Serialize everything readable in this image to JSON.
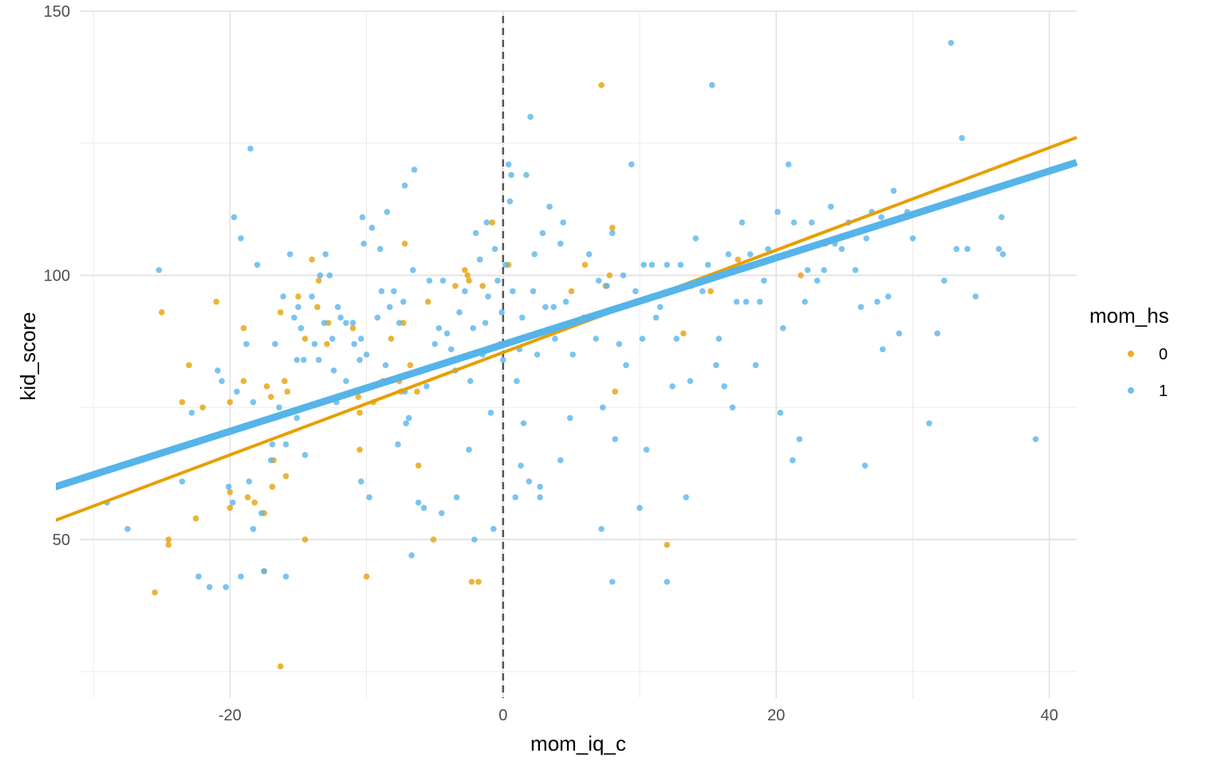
{
  "chart_data": {
    "type": "scatter",
    "xlabel": "mom_iq_c",
    "ylabel": "kid_score",
    "xlim": [
      -31,
      42
    ],
    "ylim": [
      20,
      150
    ],
    "x_ticks": [
      -20,
      0,
      20,
      40
    ],
    "x_tick_labels": [
      "-20",
      "0",
      "20",
      "40"
    ],
    "y_ticks": [
      50,
      100,
      150
    ],
    "y_tick_labels": [
      "50",
      "100",
      "150"
    ],
    "grid": true,
    "legend": {
      "title": "mom_hs",
      "position": "right",
      "entries": [
        {
          "label": "0",
          "color": "#E69F00"
        },
        {
          "label": "1",
          "color": "#56B4E9"
        }
      ]
    },
    "reference_line": {
      "x": 0,
      "style": "dashed",
      "color": "#555555"
    },
    "series": [
      {
        "name": "0",
        "color": "#E69F00",
        "points": [
          [
            -25,
            93
          ],
          [
            -23,
            83
          ],
          [
            -22,
            75
          ],
          [
            -21,
            95
          ],
          [
            -23.5,
            76
          ],
          [
            -25.5,
            40
          ],
          [
            -24.5,
            50
          ],
          [
            -24.5,
            49
          ],
          [
            -22.5,
            54
          ],
          [
            -20,
            76
          ],
          [
            -20,
            56
          ],
          [
            -19.5,
            71
          ],
          [
            -20,
            59
          ],
          [
            -19,
            80
          ],
          [
            -18.7,
            58
          ],
          [
            -18.2,
            57
          ],
          [
            -17.5,
            55
          ],
          [
            -17.5,
            44
          ],
          [
            -17.3,
            79
          ],
          [
            -16.8,
            65
          ],
          [
            -16.9,
            60
          ],
          [
            -16.3,
            93
          ],
          [
            -16.3,
            26
          ],
          [
            -16,
            80
          ],
          [
            -15.8,
            78
          ],
          [
            -15.9,
            62
          ],
          [
            -15,
            96
          ],
          [
            -14.5,
            88
          ],
          [
            -14,
            103
          ],
          [
            -13.6,
            94
          ],
          [
            -13.5,
            99
          ],
          [
            -12.9,
            87
          ],
          [
            -12.8,
            91
          ],
          [
            -11,
            90
          ],
          [
            -10.6,
            77
          ],
          [
            -10.5,
            74
          ],
          [
            -10.5,
            67
          ],
          [
            -10,
            43
          ],
          [
            -9.5,
            76
          ],
          [
            -8.8,
            80
          ],
          [
            -8.2,
            88
          ],
          [
            -7.5,
            78
          ],
          [
            -7.6,
            80
          ],
          [
            -7.2,
            106
          ],
          [
            -7.3,
            91
          ],
          [
            -6.8,
            83
          ],
          [
            -6.3,
            78
          ],
          [
            -6.2,
            64
          ],
          [
            -5.5,
            95
          ],
          [
            -5.1,
            50
          ],
          [
            -3.5,
            98
          ],
          [
            -2.8,
            101
          ],
          [
            -2.6,
            100
          ],
          [
            -2.5,
            99
          ],
          [
            -2.5,
            85
          ],
          [
            -2.3,
            42
          ],
          [
            -1.8,
            42
          ],
          [
            -1.5,
            98
          ],
          [
            -0.8,
            110
          ],
          [
            0.4,
            102
          ],
          [
            5,
            97
          ],
          [
            6,
            102
          ],
          [
            7.2,
            136
          ],
          [
            7.5,
            98
          ],
          [
            7.8,
            100
          ],
          [
            8,
            109
          ],
          [
            8.2,
            78
          ],
          [
            13.2,
            89
          ],
          [
            13.8,
            98
          ],
          [
            15.2,
            97
          ],
          [
            17.2,
            103
          ],
          [
            21.8,
            100
          ],
          [
            23.6,
            106
          ],
          [
            12,
            49
          ],
          [
            -14.5,
            50
          ],
          [
            -17,
            77
          ],
          [
            -19,
            90
          ]
        ]
      },
      {
        "name": "1",
        "color": "#56B4E9",
        "points": [
          [
            -29,
            57
          ],
          [
            -27.5,
            52
          ],
          [
            -25.2,
            101
          ],
          [
            -23.5,
            61
          ],
          [
            -22.8,
            74
          ],
          [
            -22.3,
            43
          ],
          [
            -21.5,
            41
          ],
          [
            -20.9,
            82
          ],
          [
            -20.6,
            80
          ],
          [
            -20.3,
            41
          ],
          [
            -20.1,
            60
          ],
          [
            -19.8,
            57
          ],
          [
            -19.7,
            111
          ],
          [
            -19.2,
            107
          ],
          [
            -19.5,
            78
          ],
          [
            -19.2,
            43
          ],
          [
            -18.8,
            87
          ],
          [
            -18.6,
            61
          ],
          [
            -18.5,
            124
          ],
          [
            -18.3,
            52
          ],
          [
            -18,
            102
          ],
          [
            -17.7,
            55
          ],
          [
            -17.5,
            44
          ],
          [
            -17,
            65
          ],
          [
            -16.9,
            68
          ],
          [
            -16.7,
            87
          ],
          [
            -16.4,
            75
          ],
          [
            -16.1,
            96
          ],
          [
            -15.9,
            68
          ],
          [
            -15.9,
            43
          ],
          [
            -15.6,
            104
          ],
          [
            -15.3,
            92
          ],
          [
            -15.1,
            84
          ],
          [
            -15.1,
            73
          ],
          [
            -14.8,
            90
          ],
          [
            -14.6,
            84
          ],
          [
            -14.5,
            66
          ],
          [
            -14,
            96
          ],
          [
            -13.8,
            87
          ],
          [
            -13.5,
            84
          ],
          [
            -13.1,
            91
          ],
          [
            -13,
            104
          ],
          [
            -12.7,
            100
          ],
          [
            -12.5,
            88
          ],
          [
            -12.4,
            82
          ],
          [
            -12.1,
            94
          ],
          [
            -12.2,
            76
          ],
          [
            -11.9,
            92
          ],
          [
            -11.5,
            80
          ],
          [
            -11.5,
            91
          ],
          [
            -11,
            91
          ],
          [
            -10.9,
            87
          ],
          [
            -10.5,
            84
          ],
          [
            -10.4,
            88
          ],
          [
            -10.3,
            111
          ],
          [
            -10.2,
            106
          ],
          [
            -10,
            85
          ],
          [
            -10.4,
            61
          ],
          [
            -9.8,
            58
          ],
          [
            -9.6,
            109
          ],
          [
            -9.2,
            92
          ],
          [
            -9,
            105
          ],
          [
            -8.9,
            97
          ],
          [
            -8.6,
            83
          ],
          [
            -8.5,
            112
          ],
          [
            -8.3,
            94
          ],
          [
            -8,
            97
          ],
          [
            -7.7,
            68
          ],
          [
            -7.6,
            91
          ],
          [
            -7.2,
            117
          ],
          [
            -7.3,
            95
          ],
          [
            -7.2,
            78
          ],
          [
            -7.1,
            72
          ],
          [
            -6.9,
            73
          ],
          [
            -6.6,
            101
          ],
          [
            -6.5,
            120
          ],
          [
            -6.2,
            57
          ],
          [
            -5.8,
            56
          ],
          [
            -5.6,
            79
          ],
          [
            -5.4,
            99
          ],
          [
            -5,
            87
          ],
          [
            -4.7,
            90
          ],
          [
            -4.4,
            99
          ],
          [
            -4.1,
            89
          ],
          [
            -3.8,
            86
          ],
          [
            -3.5,
            82
          ],
          [
            -3.2,
            93
          ],
          [
            -2.8,
            97
          ],
          [
            -2.5,
            67
          ],
          [
            -2.4,
            80
          ],
          [
            -2.2,
            90
          ],
          [
            -2,
            108
          ],
          [
            -1.7,
            103
          ],
          [
            -1.5,
            85
          ],
          [
            -1.3,
            91
          ],
          [
            -1.2,
            110
          ],
          [
            -1.1,
            96
          ],
          [
            -0.9,
            74
          ],
          [
            -0.7,
            52
          ],
          [
            -0.6,
            105
          ],
          [
            -0.4,
            99
          ],
          [
            -0.2,
            87
          ],
          [
            -0.1,
            93
          ],
          [
            0,
            84
          ],
          [
            0.2,
            102
          ],
          [
            0.4,
            121
          ],
          [
            0.5,
            114
          ],
          [
            0.6,
            119
          ],
          [
            0.7,
            97
          ],
          [
            1,
            80
          ],
          [
            1.2,
            86
          ],
          [
            1.4,
            92
          ],
          [
            1.5,
            72
          ],
          [
            1.7,
            119
          ],
          [
            1.9,
            61
          ],
          [
            2,
            130
          ],
          [
            2.2,
            97
          ],
          [
            2.3,
            104
          ],
          [
            2.5,
            85
          ],
          [
            2.7,
            60
          ],
          [
            2.9,
            108
          ],
          [
            3.1,
            94
          ],
          [
            3.4,
            113
          ],
          [
            3.7,
            94
          ],
          [
            3.8,
            88
          ],
          [
            4.2,
            106
          ],
          [
            4.4,
            110
          ],
          [
            4.6,
            95
          ],
          [
            4.9,
            73
          ],
          [
            5.1,
            85
          ],
          [
            5.4,
            91
          ],
          [
            5.9,
            92
          ],
          [
            6.3,
            104
          ],
          [
            6.8,
            88
          ],
          [
            7,
            99
          ],
          [
            7.3,
            75
          ],
          [
            7.6,
            98
          ],
          [
            8,
            108
          ],
          [
            8.2,
            69
          ],
          [
            8.5,
            87
          ],
          [
            8.8,
            100
          ],
          [
            9,
            83
          ],
          [
            9.4,
            121
          ],
          [
            9.7,
            97
          ],
          [
            10,
            56
          ],
          [
            10.2,
            88
          ],
          [
            10.5,
            67
          ],
          [
            10.9,
            102
          ],
          [
            11.2,
            92
          ],
          [
            11.5,
            94
          ],
          [
            12,
            102
          ],
          [
            12.4,
            79
          ],
          [
            12.7,
            88
          ],
          [
            13,
            102
          ],
          [
            13.4,
            58
          ],
          [
            13.7,
            80
          ],
          [
            14.1,
            107
          ],
          [
            14.6,
            97
          ],
          [
            15,
            102
          ],
          [
            15.3,
            136
          ],
          [
            15.6,
            83
          ],
          [
            15.8,
            88
          ],
          [
            16.2,
            79
          ],
          [
            16.5,
            104
          ],
          [
            16.8,
            75
          ],
          [
            17.1,
            95
          ],
          [
            17.5,
            110
          ],
          [
            17.8,
            95
          ],
          [
            18.1,
            104
          ],
          [
            18.5,
            83
          ],
          [
            18.8,
            95
          ],
          [
            19.1,
            99
          ],
          [
            19.4,
            105
          ],
          [
            19.7,
            103
          ],
          [
            20.1,
            112
          ],
          [
            20.5,
            90
          ],
          [
            20.9,
            121
          ],
          [
            21.3,
            110
          ],
          [
            21.7,
            69
          ],
          [
            22.1,
            95
          ],
          [
            22.6,
            110
          ],
          [
            23,
            99
          ],
          [
            23.5,
            101
          ],
          [
            24,
            113
          ],
          [
            24.3,
            106
          ],
          [
            24.8,
            105
          ],
          [
            25.3,
            110
          ],
          [
            25.8,
            101
          ],
          [
            26.2,
            94
          ],
          [
            26.6,
            107
          ],
          [
            27,
            112
          ],
          [
            27.4,
            95
          ],
          [
            27.7,
            111
          ],
          [
            28.2,
            96
          ],
          [
            28.6,
            116
          ],
          [
            29,
            89
          ],
          [
            29.6,
            112
          ],
          [
            30,
            107
          ],
          [
            31.2,
            72
          ],
          [
            31.8,
            89
          ],
          [
            32.3,
            99
          ],
          [
            32.8,
            144
          ],
          [
            33.2,
            105
          ],
          [
            33.6,
            126
          ],
          [
            34,
            105
          ],
          [
            34.6,
            96
          ],
          [
            36.3,
            105
          ],
          [
            36.5,
            111
          ],
          [
            36.6,
            104
          ],
          [
            39,
            69
          ],
          [
            26.5,
            64
          ],
          [
            20.3,
            74
          ],
          [
            21.2,
            65
          ],
          [
            12,
            42
          ],
          [
            7.2,
            52
          ],
          [
            4.2,
            65
          ],
          [
            1.3,
            64
          ],
          [
            2.7,
            58
          ],
          [
            0.9,
            58
          ],
          [
            -2.1,
            50
          ],
          [
            -3.4,
            58
          ],
          [
            -4.5,
            55
          ],
          [
            -6.7,
            47
          ],
          [
            -15,
            94
          ],
          [
            -13.4,
            100
          ],
          [
            -18.3,
            76
          ],
          [
            22.3,
            101
          ],
          [
            10.3,
            102
          ],
          [
            27.8,
            86
          ],
          [
            8,
            42
          ]
        ]
      }
    ],
    "fit_lines": [
      {
        "name": "0",
        "color": "#E69F00",
        "intercept": 85.4,
        "slope": 0.969,
        "width": "thin"
      },
      {
        "name": "1",
        "color": "#56B4E9",
        "intercept": 86.9,
        "slope": 0.821,
        "width": "thick"
      }
    ]
  }
}
